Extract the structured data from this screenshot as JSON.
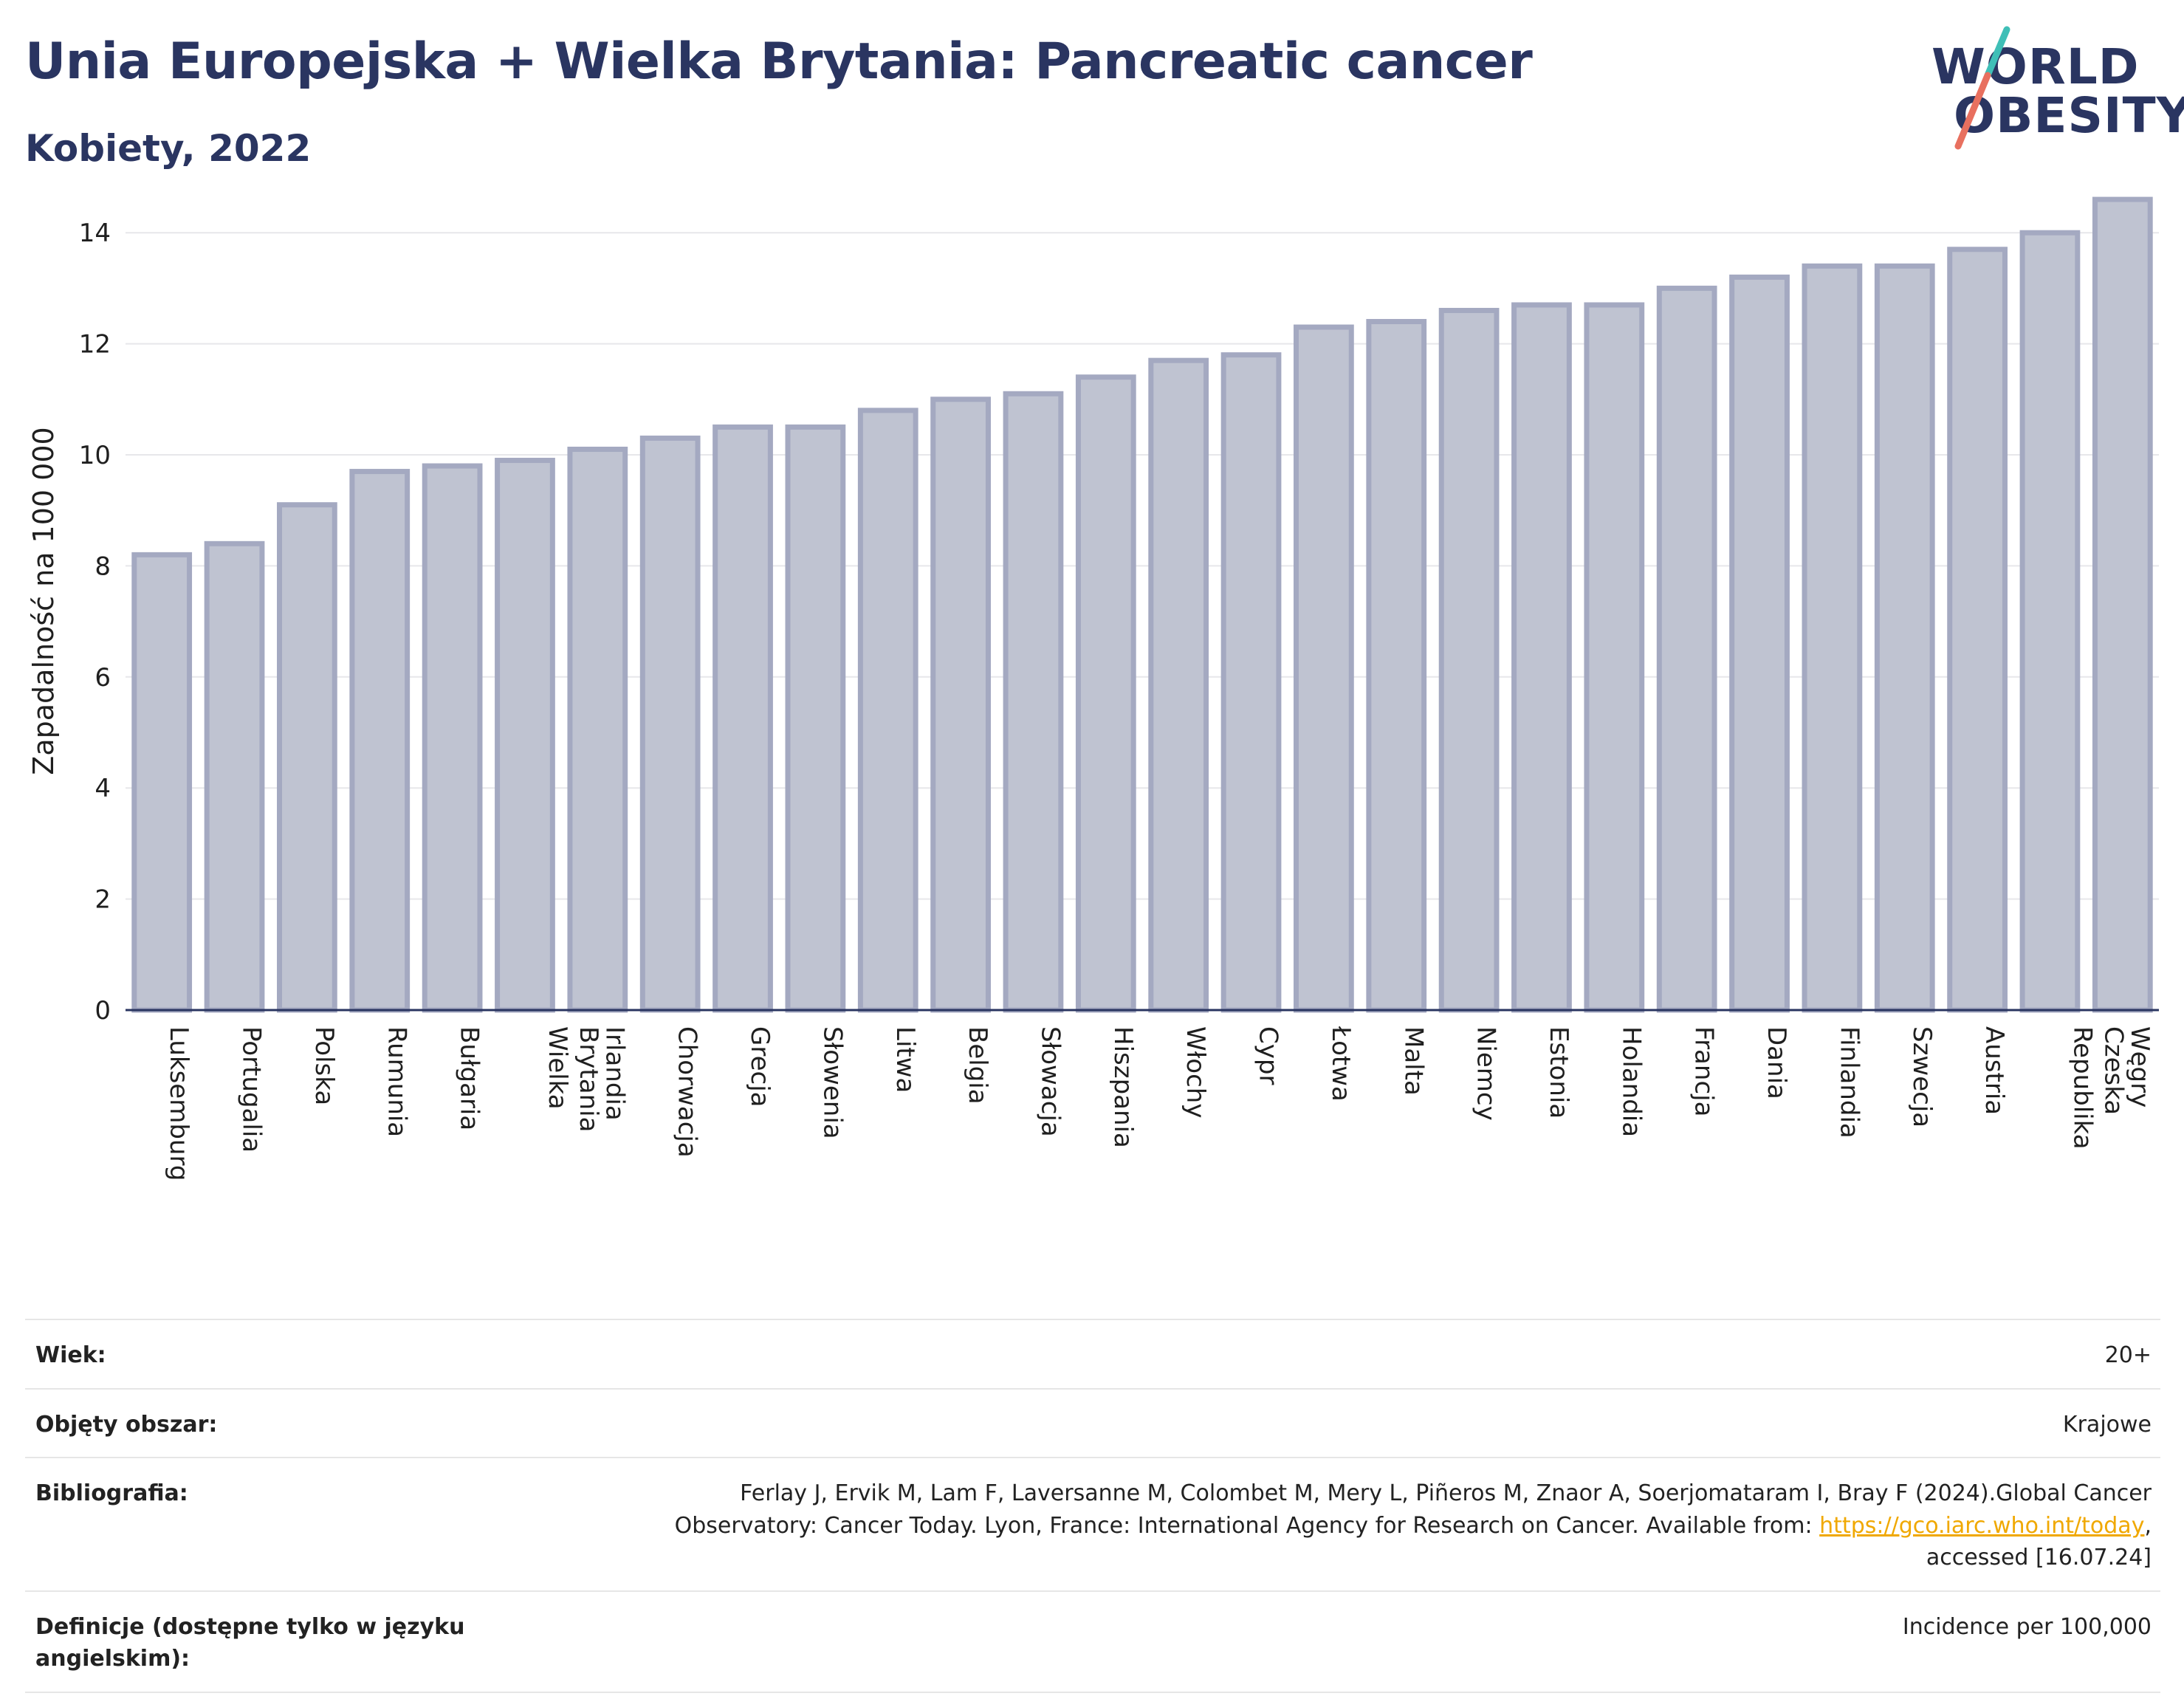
{
  "header": {
    "title": "Unia Europejska + Wielka Brytania: Pancreatic cancer",
    "subtitle": "Kobiety, 2022"
  },
  "logo": {
    "line1": "WORLD",
    "line2": "OBESITY",
    "colors": {
      "text": "#2a3561",
      "slash_top": "#3fbfb7",
      "slash_bottom": "#e8705f"
    }
  },
  "chart_data": {
    "type": "bar",
    "title": "",
    "ylabel": "Zapadalność na 100 000",
    "xlabel": "",
    "ylim": [
      0,
      15
    ],
    "yticks": [
      0,
      2,
      4,
      6,
      8,
      10,
      12,
      14
    ],
    "grid": true,
    "bar_fill": "#bfc3d1",
    "bar_stroke": "#a4a9c1",
    "categories": [
      "Luksemburg",
      "Portugalia",
      "Polska",
      "Rumunia",
      "Bułgaria",
      "Wielka Brytania",
      "Irlandia",
      "Chorwacja",
      "Grecja",
      "Słowenia",
      "Litwa",
      "Belgia",
      "Słowacja",
      "Hiszpania",
      "Włochy",
      "Cypr",
      "Łotwa",
      "Malta",
      "Niemcy",
      "Estonia",
      "Holandia",
      "Francja",
      "Dania",
      "Finlandia",
      "Szwecja",
      "Austria",
      "Republika Czeska",
      "Węgry"
    ],
    "values": [
      8.2,
      8.4,
      9.1,
      9.7,
      9.8,
      9.9,
      10.1,
      10.3,
      10.5,
      10.5,
      10.8,
      11.0,
      11.1,
      11.4,
      11.7,
      11.8,
      12.3,
      12.4,
      12.6,
      12.7,
      12.7,
      13.0,
      13.2,
      13.4,
      13.4,
      13.7,
      14.0,
      14.6
    ]
  },
  "info": {
    "age_label": "Wiek:",
    "age_value": "20+",
    "coverage_label": "Objęty obszar:",
    "coverage_value": "Krajowe",
    "bibliography_label": "Bibliografia:",
    "bibliography_line1": "Ferlay J, Ervik M, Lam F, Laversanne M, Colombet M, Mery L, Piñeros M, Znaor A, Soerjomataram I, Bray F (2024).Global Cancer",
    "bibliography_line2_prefix": "Observatory: Cancer Today. Lyon, France: International Agency for Research on Cancer. Available from: ",
    "bibliography_link": "https://gco.iarc.who.int/today",
    "bibliography_line2_suffix": ",",
    "bibliography_line3": "accessed [16.07.24]",
    "definitions_label": "Definicje (dostępne tylko w języku angielskim):",
    "definitions_value": "Incidence per 100,000"
  }
}
